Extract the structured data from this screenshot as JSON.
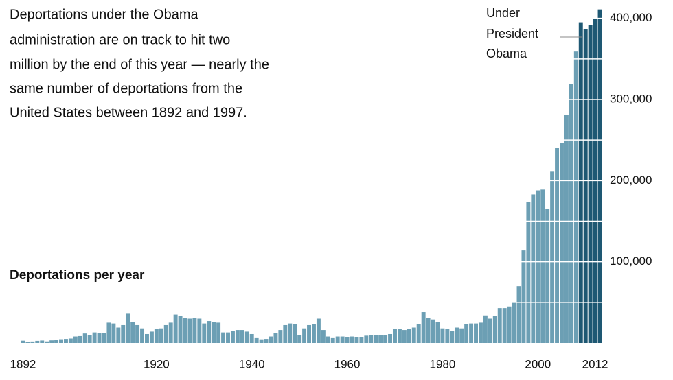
{
  "chart_data": {
    "type": "bar",
    "title_lines": [
      "Deportations under the Obama",
      "administration are on track to hit two",
      "million by the end of this year — nearly the",
      "same number of deportations from the",
      "United States between 1892 and 1997."
    ],
    "subtitle": "Deportations per year",
    "annotation_lines": [
      "Under",
      "President",
      "Obama"
    ],
    "x": [
      1892,
      1893,
      1894,
      1895,
      1896,
      1897,
      1898,
      1899,
      1900,
      1901,
      1902,
      1903,
      1904,
      1905,
      1906,
      1907,
      1908,
      1909,
      1910,
      1911,
      1912,
      1913,
      1914,
      1915,
      1916,
      1917,
      1918,
      1919,
      1920,
      1921,
      1922,
      1923,
      1924,
      1925,
      1926,
      1927,
      1928,
      1929,
      1930,
      1931,
      1932,
      1933,
      1934,
      1935,
      1936,
      1937,
      1938,
      1939,
      1940,
      1941,
      1942,
      1943,
      1944,
      1945,
      1946,
      1947,
      1948,
      1949,
      1950,
      1951,
      1952,
      1953,
      1954,
      1955,
      1956,
      1957,
      1958,
      1959,
      1960,
      1961,
      1962,
      1963,
      1964,
      1965,
      1966,
      1967,
      1968,
      1969,
      1970,
      1971,
      1972,
      1973,
      1974,
      1975,
      1976,
      1977,
      1978,
      1979,
      1980,
      1981,
      1982,
      1983,
      1984,
      1985,
      1986,
      1987,
      1988,
      1989,
      1990,
      1991,
      1992,
      1993,
      1994,
      1995,
      1996,
      1997,
      1998,
      1999,
      2000,
      2001,
      2002,
      2003,
      2004,
      2005,
      2006,
      2007,
      2008,
      2009,
      2010,
      2011,
      2012,
      2013
    ],
    "values": [
      2800,
      1600,
      1800,
      2600,
      3000,
      1900,
      3200,
      3800,
      4600,
      5000,
      5500,
      8000,
      8500,
      11700,
      9500,
      13000,
      12500,
      12000,
      25000,
      24000,
      19000,
      22000,
      36000,
      26000,
      22000,
      18000,
      11000,
      14000,
      17000,
      18000,
      22000,
      25000,
      35000,
      33000,
      31000,
      30000,
      31000,
      30000,
      24000,
      27000,
      26000,
      25000,
      13000,
      13000,
      15000,
      16000,
      16000,
      14000,
      11000,
      6000,
      4500,
      5000,
      8000,
      12000,
      16000,
      22000,
      24000,
      23000,
      10000,
      18000,
      22000,
      23000,
      30000,
      16000,
      8000,
      6000,
      8000,
      8000,
      7000,
      8000,
      7500,
      7500,
      9000,
      10000,
      9500,
      9500,
      9600,
      11000,
      17000,
      17600,
      16000,
      17000,
      19000,
      23000,
      38000,
      31000,
      29000,
      26000,
      18000,
      17000,
      15000,
      19000,
      18000,
      23000,
      24000,
      24000,
      25000,
      34000,
      30000,
      33000,
      43000,
      43000,
      45000,
      50000,
      70000,
      114000,
      174000,
      183000,
      188000,
      189000,
      165000,
      211000,
      240000,
      246000,
      281000,
      319000,
      359000,
      395000,
      387000,
      392000,
      400000,
      411000
    ],
    "color": "#6c9fb4",
    "highlight": {
      "from": 2009,
      "color": "#1e5873"
    },
    "xlim": [
      1891.5,
      2013.5
    ],
    "xticks": [
      1892,
      1920,
      1940,
      1960,
      1980,
      2000,
      2012
    ],
    "ylim": [
      0,
      420000
    ],
    "yticks": [
      {
        "value": 100000,
        "label": "100,000"
      },
      {
        "value": 200000,
        "label": "200,000"
      },
      {
        "value": 300000,
        "label": "300,000"
      },
      {
        "value": 400000,
        "label": "400,000"
      }
    ],
    "grid_lines": [
      50000,
      100000,
      150000,
      200000,
      250000,
      300000,
      350000,
      400000
    ],
    "grid_color": "#ffffff"
  }
}
